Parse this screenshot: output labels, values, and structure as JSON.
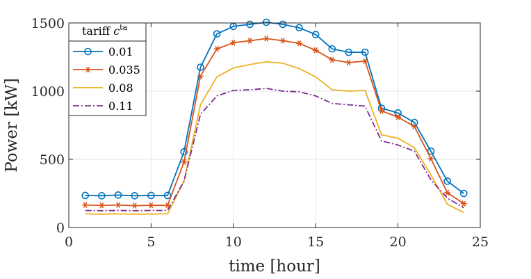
{
  "chart_data": {
    "type": "line",
    "title": "",
    "xlabel": "time [hour]",
    "ylabel": "Power [kW]",
    "xlim": [
      0,
      25
    ],
    "ylim": [
      0,
      1500
    ],
    "xticks": [
      0,
      5,
      10,
      15,
      20,
      25
    ],
    "yticks": [
      0,
      500,
      1000,
      1500
    ],
    "grid": true,
    "legend": {
      "placement": "top-left",
      "title_prefix": "tariff ",
      "title_symbol": "c",
      "title_sup": "ta"
    },
    "x": [
      1,
      2,
      3,
      4,
      5,
      6,
      7,
      8,
      9,
      10,
      11,
      12,
      13,
      14,
      15,
      16,
      17,
      18,
      19,
      20,
      21,
      22,
      23,
      24
    ],
    "series": [
      {
        "name": "0.01",
        "color": "#0072BD",
        "line": "solid",
        "marker": "circle",
        "values": [
          235,
          233,
          238,
          233,
          235,
          235,
          555,
          1175,
          1420,
          1475,
          1490,
          1505,
          1490,
          1465,
          1415,
          1310,
          1285,
          1285,
          875,
          840,
          770,
          560,
          340,
          250
        ]
      },
      {
        "name": "0.035",
        "color": "#D95319",
        "line": "solid",
        "marker": "asterisk",
        "values": [
          165,
          162,
          165,
          160,
          163,
          162,
          480,
          1110,
          1310,
          1355,
          1370,
          1385,
          1370,
          1350,
          1300,
          1230,
          1210,
          1220,
          855,
          810,
          740,
          505,
          255,
          175
        ]
      },
      {
        "name": "0.08",
        "color": "#EDB120",
        "line": "solid",
        "marker": "none",
        "values": [
          100,
          98,
          100,
          98,
          99,
          100,
          340,
          900,
          1105,
          1170,
          1195,
          1215,
          1205,
          1165,
          1105,
          1010,
          1000,
          1005,
          680,
          655,
          585,
          385,
          170,
          110
        ]
      },
      {
        "name": "0.11",
        "color": "#7E2F8E",
        "line": "dashdot",
        "marker": "none",
        "values": [
          125,
          123,
          125,
          123,
          125,
          125,
          340,
          830,
          965,
          1005,
          1010,
          1020,
          1000,
          995,
          965,
          910,
          900,
          890,
          635,
          605,
          560,
          350,
          215,
          145
        ]
      }
    ]
  }
}
